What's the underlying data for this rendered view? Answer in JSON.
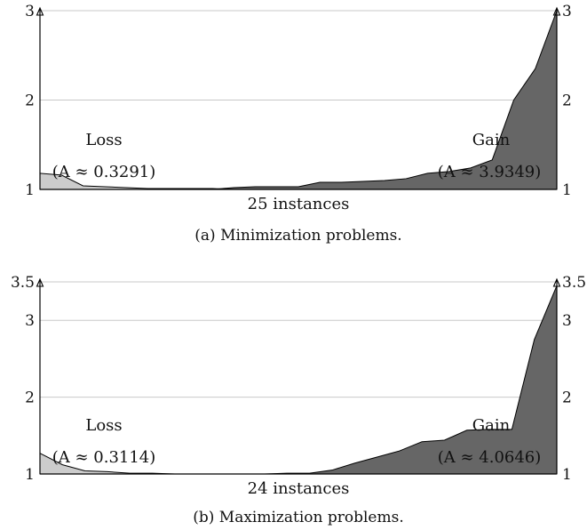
{
  "colors": {
    "loss_fill": "#cccccc",
    "gain_fill": "#666666",
    "grid": "#c8c8c8",
    "axis": "#000000"
  },
  "chart_data": [
    {
      "type": "area",
      "caption": "(a) Minimization problems.",
      "xlabel": "25 instances",
      "ylim": [
        1,
        3
      ],
      "yticks": [
        1,
        2,
        3
      ],
      "yticks_right": [
        1,
        2,
        3
      ],
      "grid": true,
      "series": [
        {
          "name": "Loss",
          "area_label": "(A ≈ 0.3291)",
          "x": [
            1,
            2,
            3,
            4,
            5,
            6,
            7,
            8,
            9,
            10,
            11,
            12,
            13,
            14,
            15,
            16,
            17,
            18,
            19,
            20,
            21,
            22,
            23,
            24,
            25
          ],
          "values": [
            1.18,
            1.16,
            1.04,
            1.03,
            1.02,
            1.01,
            1.01,
            1.01,
            1.01,
            1.0,
            1.0,
            1.0,
            1.0,
            1.0,
            1.0,
            1.0,
            1.0,
            1.0,
            1.0,
            1.0,
            1.0,
            1.0,
            1.0,
            1.0,
            1.0
          ]
        },
        {
          "name": "Gain",
          "area_label": "(A ≈ 3.9349)",
          "x": [
            1,
            2,
            3,
            4,
            5,
            6,
            7,
            8,
            9,
            10,
            11,
            12,
            13,
            14,
            15,
            16,
            17,
            18,
            19,
            20,
            21,
            22,
            23,
            24,
            25
          ],
          "values": [
            1.0,
            1.0,
            1.0,
            1.0,
            1.0,
            1.0,
            1.0,
            1.0,
            1.0,
            1.02,
            1.03,
            1.03,
            1.03,
            1.08,
            1.08,
            1.09,
            1.1,
            1.12,
            1.18,
            1.2,
            1.24,
            1.33,
            2.0,
            2.35,
            3.0
          ]
        }
      ]
    },
    {
      "type": "area",
      "caption": "(b) Maximization problems.",
      "xlabel": "24 instances",
      "ylim": [
        1,
        3.5
      ],
      "yticks": [
        1,
        2,
        3,
        3.5
      ],
      "yticks_right": [
        1,
        2,
        3,
        3.5
      ],
      "grid": true,
      "series": [
        {
          "name": "Loss",
          "area_label": "(A ≈ 0.3114)",
          "x": [
            1,
            2,
            3,
            4,
            5,
            6,
            7,
            8,
            9,
            10,
            11,
            12,
            13,
            14,
            15,
            16,
            17,
            18,
            19,
            20,
            21,
            22,
            23,
            24
          ],
          "values": [
            1.27,
            1.12,
            1.04,
            1.03,
            1.01,
            1.01,
            1.0,
            1.0,
            1.0,
            1.0,
            1.0,
            1.0,
            1.0,
            1.0,
            1.0,
            1.0,
            1.0,
            1.0,
            1.0,
            1.0,
            1.0,
            1.0,
            1.0,
            1.0
          ]
        },
        {
          "name": "Gain",
          "area_label": "(A ≈ 4.0646)",
          "x": [
            1,
            2,
            3,
            4,
            5,
            6,
            7,
            8,
            9,
            10,
            11,
            12,
            13,
            14,
            15,
            16,
            17,
            18,
            19,
            20,
            21,
            22,
            23,
            24
          ],
          "values": [
            1.0,
            1.0,
            1.0,
            1.0,
            1.0,
            1.0,
            1.0,
            1.0,
            1.0,
            1.0,
            1.0,
            1.01,
            1.01,
            1.05,
            1.14,
            1.22,
            1.3,
            1.42,
            1.44,
            1.57,
            1.58,
            1.58,
            2.75,
            3.45
          ]
        }
      ]
    }
  ]
}
